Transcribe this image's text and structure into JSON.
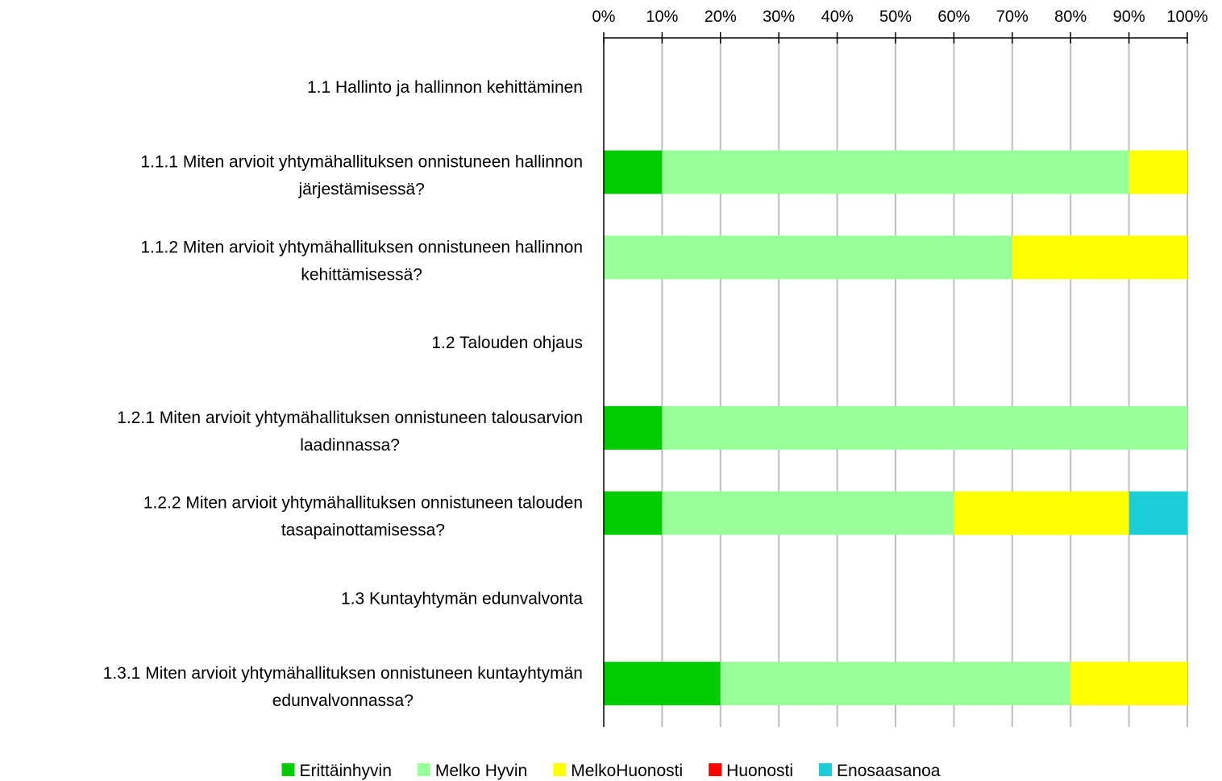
{
  "chart_data": {
    "type": "bar",
    "orientation": "horizontal",
    "stacked": "percent",
    "axis": {
      "position": "top",
      "min": 0,
      "max": 100,
      "step": 10,
      "tick_labels": [
        "0%",
        "10%",
        "20%",
        "30%",
        "40%",
        "50%",
        "60%",
        "70%",
        "80%",
        "90%",
        "100%"
      ],
      "grid": true
    },
    "categories": [
      [
        "1.1 Hallinto ja hallinnon kehittäminen"
      ],
      [
        "1.1.1 Miten arvioit yhtymähallituksen onnistuneen hallinnon",
        "järjestämisessä?"
      ],
      [
        "1.1.2 Miten arvioit yhtymähallituksen onnistuneen hallinnon",
        "kehittämisessä?"
      ],
      [
        "1.2 Talouden ohjaus"
      ],
      [
        "1.2.1 Miten arvioit yhtymähallituksen onnistuneen talousarvion",
        "laadinnassa?"
      ],
      [
        "1.2.2 Miten arvioit yhtymähallituksen onnistuneen talouden",
        "tasapainottamisessa?"
      ],
      [
        "1.3 Kuntayhtymän edunvalvonta"
      ],
      [
        "1.3.1 Miten arvioit yhtymähallituksen onnistuneen kuntayhtymän",
        "edunvalvonnassa?"
      ]
    ],
    "series": [
      {
        "name": "Erittäinhyvin",
        "color": "#00cc00",
        "values": [
          0,
          10,
          0,
          0,
          10,
          10,
          0,
          20
        ]
      },
      {
        "name": "Melko Hyvin",
        "color": "#99ff99",
        "values": [
          0,
          80,
          70,
          0,
          90,
          50,
          0,
          60
        ]
      },
      {
        "name": "MelkoHuonosti",
        "color": "#ffff00",
        "values": [
          0,
          10,
          30,
          0,
          0,
          30,
          0,
          20
        ]
      },
      {
        "name": "Huonosti",
        "color": "#ff0000",
        "values": [
          0,
          0,
          0,
          0,
          0,
          0,
          0,
          0
        ]
      },
      {
        "name": "Enosaasanoa",
        "color": "#1ccdd8",
        "values": [
          0,
          0,
          0,
          0,
          0,
          10,
          0,
          0
        ]
      }
    ],
    "legend": {
      "position": "bottom"
    }
  }
}
